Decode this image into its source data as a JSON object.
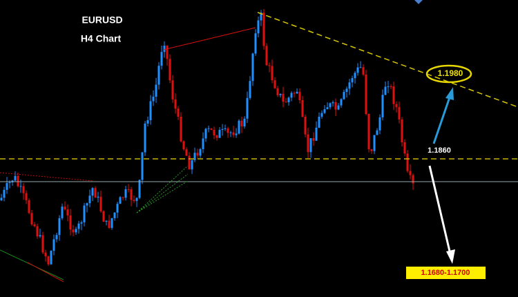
{
  "title": "EURUSD",
  "subtitle": "H4 Chart",
  "levels": {
    "resistance": "1.1980",
    "support": "1.1860",
    "target": "1.1680-1.1700"
  }
}
